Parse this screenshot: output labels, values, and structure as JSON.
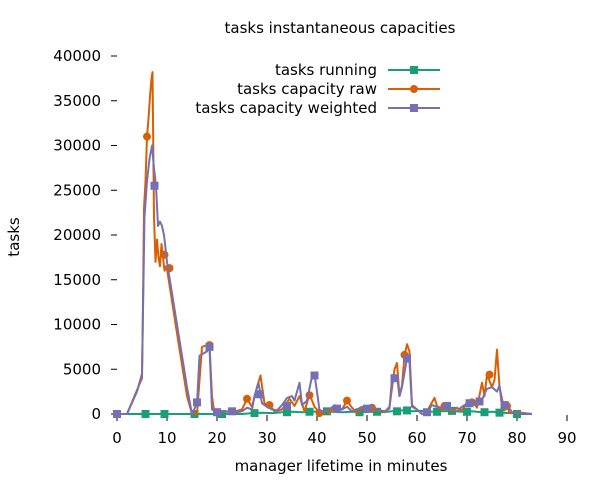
{
  "chart_data": {
    "type": "line",
    "title": "tasks instantaneous capacities",
    "xlabel": "manager lifetime in minutes",
    "ylabel": "tasks",
    "xlim": [
      0,
      90
    ],
    "ylim": [
      0,
      40000
    ],
    "xticks": [
      0,
      10,
      20,
      30,
      40,
      50,
      60,
      70,
      80,
      90
    ],
    "yticks": [
      0,
      5000,
      10000,
      15000,
      20000,
      25000,
      30000,
      35000,
      40000
    ],
    "grid": false,
    "legend_position": "top-right",
    "series": [
      {
        "name": "tasks running",
        "color": "#1a9e77",
        "marker": "square",
        "points": [
          [
            0,
            0
          ],
          [
            2,
            0
          ],
          [
            5,
            0
          ],
          [
            7,
            0
          ],
          [
            10,
            0
          ],
          [
            13,
            0
          ],
          [
            16,
            0
          ],
          [
            19,
            0
          ],
          [
            22,
            0
          ],
          [
            25,
            0
          ],
          [
            27,
            100
          ],
          [
            29,
            150
          ],
          [
            31,
            100
          ],
          [
            33,
            200
          ],
          [
            35,
            250
          ],
          [
            37,
            200
          ],
          [
            39,
            250
          ],
          [
            41,
            300
          ],
          [
            43,
            250
          ],
          [
            45,
            200
          ],
          [
            47,
            250
          ],
          [
            49,
            200
          ],
          [
            51,
            250
          ],
          [
            53,
            200
          ],
          [
            55,
            300
          ],
          [
            57,
            400
          ],
          [
            59,
            300
          ],
          [
            61,
            350
          ],
          [
            63,
            250
          ],
          [
            65,
            300
          ],
          [
            67,
            350
          ],
          [
            69,
            250
          ],
          [
            71,
            300
          ],
          [
            73,
            200
          ],
          [
            75,
            250
          ],
          [
            77,
            150
          ],
          [
            79,
            100
          ],
          [
            81,
            0
          ],
          [
            83,
            0
          ]
        ],
        "markers": [
          [
            0,
            0
          ],
          [
            5.7,
            0
          ],
          [
            9.5,
            0
          ],
          [
            15.5,
            0
          ],
          [
            21,
            0
          ],
          [
            27.5,
            100
          ],
          [
            34,
            200
          ],
          [
            38.5,
            250
          ],
          [
            42,
            300
          ],
          [
            48.5,
            200
          ],
          [
            52,
            250
          ],
          [
            56,
            300
          ],
          [
            58,
            400
          ],
          [
            64,
            250
          ],
          [
            67,
            350
          ],
          [
            70,
            250
          ],
          [
            73.5,
            200
          ],
          [
            76.5,
            150
          ],
          [
            80,
            0
          ]
        ]
      },
      {
        "name": "tasks capacity raw",
        "color": "#d95f02",
        "marker": "circle",
        "points": [
          [
            0,
            0
          ],
          [
            2,
            0
          ],
          [
            5,
            4000
          ],
          [
            5.2,
            12500
          ],
          [
            5.4,
            23000
          ],
          [
            5.7,
            26000
          ],
          [
            6,
            31000
          ],
          [
            6.3,
            33000
          ],
          [
            6.6,
            35500
          ],
          [
            6.9,
            37500
          ],
          [
            7.1,
            38200
          ],
          [
            7.4,
            22000
          ],
          [
            7.7,
            17000
          ],
          [
            8,
            19500
          ],
          [
            8.3,
            17500
          ],
          [
            8.6,
            16500
          ],
          [
            8.9,
            19000
          ],
          [
            9.2,
            17500
          ],
          [
            9.5,
            16000
          ],
          [
            9.8,
            16500
          ],
          [
            10,
            16200
          ],
          [
            12,
            9000
          ],
          [
            14,
            2000
          ],
          [
            15,
            0
          ],
          [
            16,
            0
          ],
          [
            17,
            7500
          ],
          [
            18.5,
            7800
          ],
          [
            19,
            2000
          ],
          [
            19.5,
            0
          ],
          [
            21,
            300
          ],
          [
            23,
            200
          ],
          [
            25,
            500
          ],
          [
            26,
            1700
          ],
          [
            27,
            800
          ],
          [
            28,
            3000
          ],
          [
            28.7,
            4300
          ],
          [
            29.5,
            1200
          ],
          [
            30.5,
            1000
          ],
          [
            31.5,
            300
          ],
          [
            33,
            500
          ],
          [
            34.5,
            1700
          ],
          [
            35.5,
            900
          ],
          [
            36.5,
            2000
          ],
          [
            37.5,
            300
          ],
          [
            38.5,
            2200
          ],
          [
            39.5,
            800
          ],
          [
            40.5,
            200
          ],
          [
            41.5,
            400
          ],
          [
            42.5,
            100
          ],
          [
            43.5,
            800
          ],
          [
            45,
            500
          ],
          [
            46,
            1500
          ],
          [
            47,
            700
          ],
          [
            48,
            100
          ],
          [
            49,
            600
          ],
          [
            50,
            500
          ],
          [
            51,
            1000
          ],
          [
            52,
            400
          ],
          [
            53.5,
            200
          ],
          [
            54.5,
            800
          ],
          [
            55.5,
            5000
          ],
          [
            56,
            5700
          ],
          [
            56.5,
            2000
          ],
          [
            57,
            3200
          ],
          [
            57.5,
            6500
          ],
          [
            58,
            7800
          ],
          [
            58.5,
            7000
          ],
          [
            59,
            1000
          ],
          [
            60,
            500
          ],
          [
            61,
            0
          ],
          [
            62,
            300
          ],
          [
            63.5,
            1800
          ],
          [
            64,
            900
          ],
          [
            65,
            400
          ],
          [
            66,
            1000
          ],
          [
            67,
            200
          ],
          [
            68,
            700
          ],
          [
            69,
            400
          ],
          [
            70,
            1300
          ],
          [
            71,
            1500
          ],
          [
            72,
            700
          ],
          [
            73,
            3500
          ],
          [
            73.5,
            2000
          ],
          [
            74,
            4400
          ],
          [
            75,
            3000
          ],
          [
            75.5,
            3800
          ],
          [
            76,
            7200
          ],
          [
            76.5,
            3000
          ],
          [
            77.5,
            400
          ],
          [
            78,
            1000
          ],
          [
            78.5,
            100
          ],
          [
            80,
            200
          ],
          [
            83,
            0
          ]
        ],
        "markers": [
          [
            0,
            0
          ],
          [
            6,
            31000
          ],
          [
            9.5,
            17800
          ],
          [
            10.5,
            16300
          ],
          [
            18.5,
            7700
          ],
          [
            26,
            1700
          ],
          [
            28.5,
            2200
          ],
          [
            30.5,
            1000
          ],
          [
            34,
            900
          ],
          [
            38.5,
            2100
          ],
          [
            40.5,
            100
          ],
          [
            46,
            1500
          ],
          [
            51,
            700
          ],
          [
            57.5,
            6600
          ],
          [
            65.5,
            900
          ],
          [
            71,
            1300
          ],
          [
            74.5,
            4400
          ],
          [
            78,
            900
          ]
        ]
      },
      {
        "name": "tasks capacity weighted",
        "color": "#7570b3",
        "marker": "square",
        "points": [
          [
            0,
            0
          ],
          [
            2,
            0
          ],
          [
            4,
            2500
          ],
          [
            5,
            4500
          ],
          [
            5.5,
            22000
          ],
          [
            6,
            26000
          ],
          [
            6.5,
            28500
          ],
          [
            7,
            30000
          ],
          [
            7.4,
            27500
          ],
          [
            7.8,
            25500
          ],
          [
            8.2,
            21000
          ],
          [
            8.6,
            21500
          ],
          [
            9,
            21000
          ],
          [
            9.4,
            20000
          ],
          [
            10,
            17000
          ],
          [
            12,
            10000
          ],
          [
            14,
            3000
          ],
          [
            15,
            0
          ],
          [
            16,
            1200
          ],
          [
            16.5,
            6500
          ],
          [
            18,
            7000
          ],
          [
            18.5,
            7500
          ],
          [
            19,
            500
          ],
          [
            20,
            200
          ],
          [
            22,
            300
          ],
          [
            24,
            200
          ],
          [
            25,
            300
          ],
          [
            26,
            700
          ],
          [
            27,
            500
          ],
          [
            27.5,
            2000
          ],
          [
            28.3,
            3500
          ],
          [
            29,
            1200
          ],
          [
            30,
            800
          ],
          [
            31,
            500
          ],
          [
            32,
            400
          ],
          [
            33,
            1000
          ],
          [
            34,
            1800
          ],
          [
            35,
            2000
          ],
          [
            35.5,
            1500
          ],
          [
            36.5,
            3500
          ],
          [
            37,
            1000
          ],
          [
            38,
            1500
          ],
          [
            39,
            4200
          ],
          [
            39.5,
            4400
          ],
          [
            40,
            2500
          ],
          [
            40.5,
            400
          ],
          [
            41.5,
            300
          ],
          [
            42.5,
            500
          ],
          [
            43.5,
            1000
          ],
          [
            45,
            500
          ],
          [
            46,
            800
          ],
          [
            47,
            300
          ],
          [
            48,
            500
          ],
          [
            49,
            800
          ],
          [
            50,
            700
          ],
          [
            51,
            900
          ],
          [
            52,
            500
          ],
          [
            53.5,
            300
          ],
          [
            54.5,
            600
          ],
          [
            55,
            4000
          ],
          [
            56,
            4200
          ],
          [
            56.5,
            2000
          ],
          [
            57,
            3000
          ],
          [
            58,
            6200
          ],
          [
            58.5,
            5800
          ],
          [
            59,
            800
          ],
          [
            60,
            500
          ],
          [
            61,
            0
          ],
          [
            62,
            200
          ],
          [
            63,
            1000
          ],
          [
            64,
            800
          ],
          [
            65,
            700
          ],
          [
            66,
            900
          ],
          [
            67,
            500
          ],
          [
            68,
            300
          ],
          [
            69,
            800
          ],
          [
            70,
            1200
          ],
          [
            71,
            1300
          ],
          [
            72,
            1000
          ],
          [
            73,
            1500
          ],
          [
            73.5,
            2300
          ],
          [
            74,
            2800
          ],
          [
            75,
            3000
          ],
          [
            76,
            2500
          ],
          [
            76.5,
            3200
          ],
          [
            77,
            800
          ],
          [
            78,
            1000
          ],
          [
            79,
            200
          ],
          [
            80,
            100
          ],
          [
            83,
            0
          ]
        ],
        "markers": [
          [
            0,
            0
          ],
          [
            7.5,
            25500
          ],
          [
            16,
            1300
          ],
          [
            18.5,
            7500
          ],
          [
            20,
            200
          ],
          [
            23,
            300
          ],
          [
            28.5,
            2200
          ],
          [
            34,
            900
          ],
          [
            39.5,
            4300
          ],
          [
            44,
            600
          ],
          [
            50,
            600
          ],
          [
            55.5,
            4000
          ],
          [
            58,
            6200
          ],
          [
            62,
            200
          ],
          [
            66,
            900
          ],
          [
            70.5,
            1200
          ],
          [
            72.5,
            1400
          ],
          [
            77.5,
            1000
          ]
        ]
      }
    ]
  }
}
